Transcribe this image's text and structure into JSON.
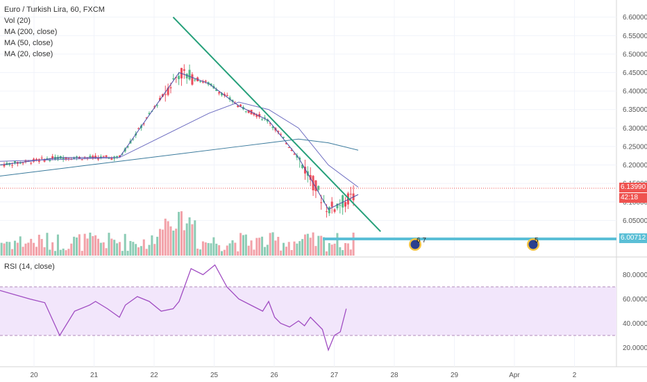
{
  "legend": {
    "title": "Euro / Turkish Lira, 60, FXCM",
    "vol": "Vol (20)",
    "ma200": "MA (200, close)",
    "ma50": "MA (50, close)",
    "ma20": "MA (20, close)"
  },
  "rsi_legend": "RSI (14, close)",
  "price_labels": {
    "last": "6.13990",
    "countdown": "42:18",
    "level": "6.00712",
    "partial": "6.10000"
  },
  "events": {
    "first": "6 7",
    "second": "5"
  },
  "colors": {
    "up": "#53b987",
    "down": "#eb4d5c",
    "up_vol": "#8cccb5",
    "down_vol": "#f2a1a8",
    "ma20": "#4a4ca6",
    "ma50": "#6b6bc0",
    "ma200": "#3a7a9c",
    "trendline": "#26a07a",
    "support": "#5bbfd6",
    "rsi": "#a04cc2",
    "rsi_band": "#f2e6fb",
    "last_price": "#ef5350"
  },
  "chart_data": {
    "type": "line",
    "title": "Euro / Turkish Lira, 60, FXCM",
    "x_ticks": [
      "20",
      "21",
      "22",
      "25",
      "26",
      "27",
      "28",
      "29",
      "Apr",
      "2"
    ],
    "price_axis": {
      "ticks": [
        "6.60000",
        "6.55000",
        "6.50000",
        "6.45000",
        "6.40000",
        "6.35000",
        "6.30000",
        "6.25000",
        "6.20000",
        "6.15000",
        "6.10000",
        "6.05000"
      ],
      "ylim": [
        6.0,
        6.62
      ]
    },
    "rsi_axis": {
      "ticks": [
        "80.0000",
        "60.0000",
        "40.0000",
        "20.0000"
      ],
      "ylim": [
        10,
        90
      ],
      "band": [
        30,
        70
      ]
    },
    "series": [
      {
        "name": "MA (20, close)",
        "x": [
          0,
          2,
          4,
          6,
          7,
          8,
          9,
          10,
          11,
          12
        ],
        "values": [
          6.2,
          6.22,
          6.22,
          6.45,
          6.42,
          6.36,
          6.32,
          6.22,
          6.08,
          6.12
        ]
      },
      {
        "name": "MA (50, close)",
        "x": [
          0,
          2,
          4,
          6,
          7,
          8,
          9,
          10,
          11,
          12
        ],
        "values": [
          6.21,
          6.215,
          6.22,
          6.3,
          6.34,
          6.37,
          6.35,
          6.3,
          6.2,
          6.14
        ]
      },
      {
        "name": "MA (200, close)",
        "x": [
          0,
          2,
          4,
          6,
          8,
          9,
          10,
          11,
          12
        ],
        "values": [
          6.17,
          6.19,
          6.21,
          6.23,
          6.25,
          6.26,
          6.27,
          6.26,
          6.24
        ]
      },
      {
        "name": "RSI (14, close)",
        "x": [
          0,
          1,
          1.5,
          2,
          2.5,
          3,
          3.2,
          3.6,
          4,
          4.2,
          4.6,
          5,
          5.4,
          5.8,
          6,
          6.4,
          6.8,
          7.2,
          7.6,
          8,
          8.4,
          8.8,
          9,
          9.2,
          9.4,
          9.7,
          10,
          10.2,
          10.4,
          10.6,
          10.8,
          11,
          11.2,
          11.4,
          11.6
        ],
        "values": [
          67,
          60,
          57,
          30,
          50,
          55,
          58,
          52,
          45,
          55,
          62,
          58,
          50,
          52,
          58,
          85,
          80,
          88,
          70,
          60,
          55,
          50,
          58,
          45,
          40,
          37,
          42,
          38,
          45,
          40,
          35,
          18,
          30,
          33,
          52
        ]
      }
    ],
    "trendline": {
      "from": [
        5.8,
        6.6
      ],
      "to": [
        11.6,
        6.08
      ]
    },
    "support_level": 6.00712,
    "last_price": 6.1399
  }
}
